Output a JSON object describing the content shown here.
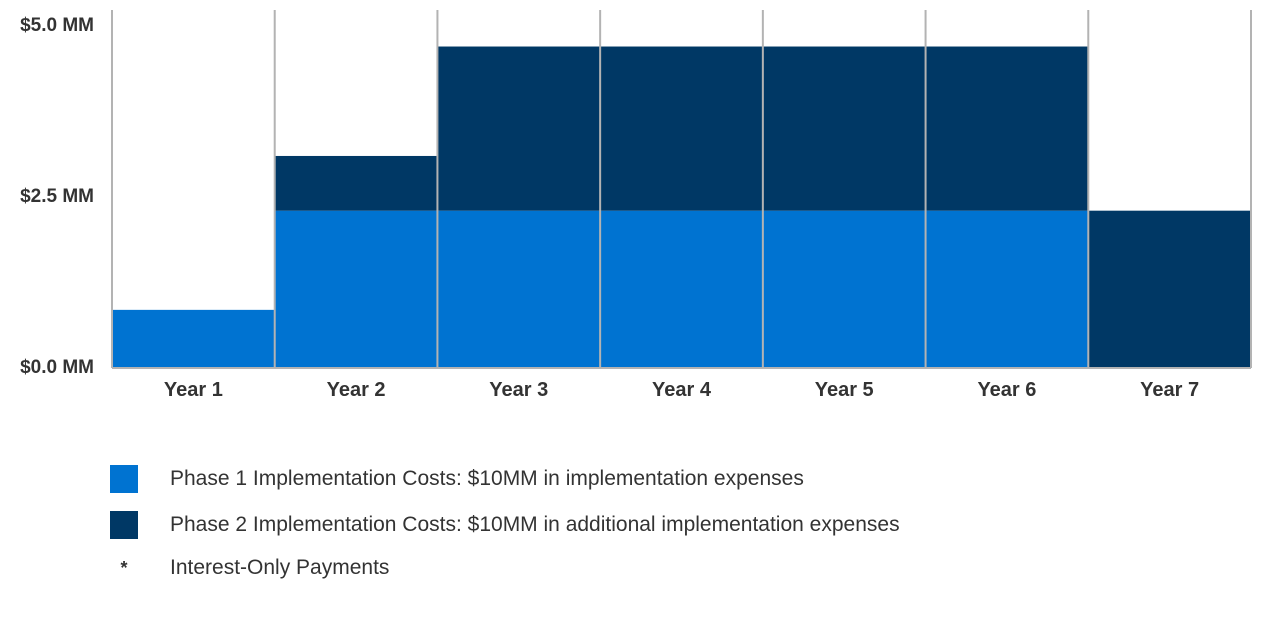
{
  "chart_data": {
    "type": "bar",
    "stacked": true,
    "categories": [
      "Year 1",
      "Year 2",
      "Year 3",
      "Year 4",
      "Year 5",
      "Year 6",
      "Year 7"
    ],
    "series": [
      {
        "name": "Phase 1 Implementation Costs: $10MM in implementation expenses",
        "color": "#0073d1",
        "values": [
          0.85,
          2.3,
          2.3,
          2.3,
          2.3,
          2.3,
          0
        ]
      },
      {
        "name": "Phase 2 Implementation Costs: $10MM in additional implementation expenses",
        "color": "#003865",
        "values": [
          0,
          0.8,
          2.4,
          2.4,
          2.4,
          2.4,
          2.3
        ]
      }
    ],
    "yticks": [
      {
        "value": 0,
        "label": "$0.0 MM"
      },
      {
        "value": 2.5,
        "label": "$2.5 MM"
      },
      {
        "value": 5,
        "label": "$5.0 MM"
      }
    ],
    "ylim": [
      0,
      5.0
    ],
    "grid": "vertical",
    "title": "",
    "xlabel": "",
    "ylabel": ""
  },
  "legend": {
    "items": [
      {
        "label": "Phase 1 Implementation Costs: $10MM in implementation expenses",
        "color": "#0073d1"
      },
      {
        "label": "Phase 2 Implementation Costs: $10MM in additional implementation expenses",
        "color": "#003865"
      }
    ],
    "note": {
      "symbol": "*",
      "label": "Interest-Only Payments"
    }
  }
}
